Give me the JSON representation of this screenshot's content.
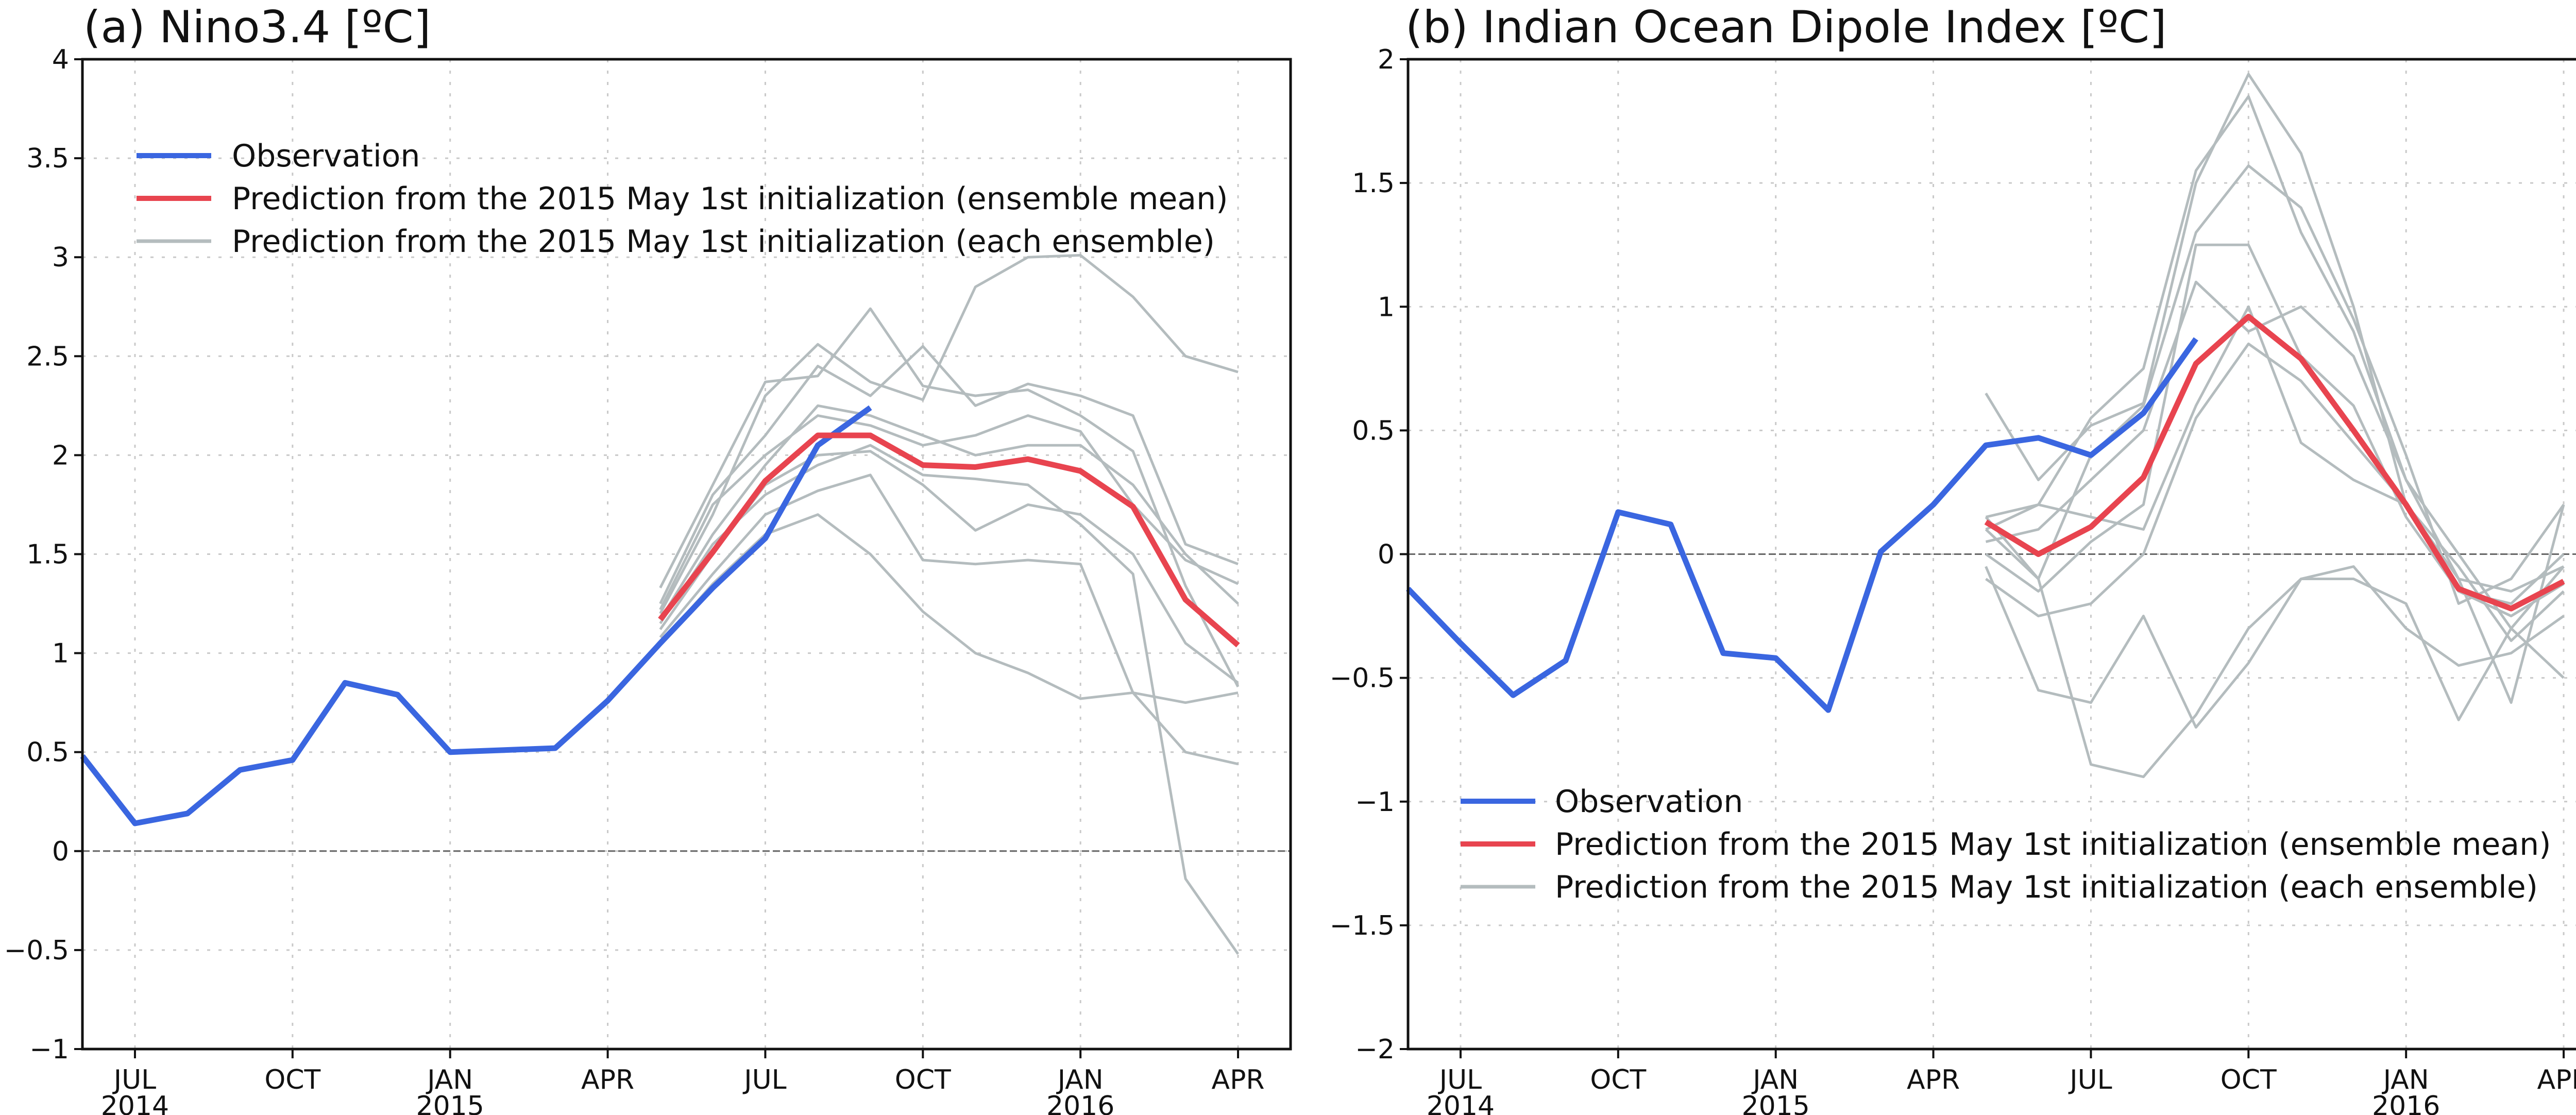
{
  "chart_data": [
    {
      "type": "line",
      "title": "(a) Nino3.4 [ºC]",
      "xlabel": "",
      "ylabel": "",
      "ylim": [
        -1,
        4
      ],
      "yticks": [
        -1,
        -0.5,
        0,
        0.5,
        1,
        1.5,
        2,
        2.5,
        3,
        3.5,
        4
      ],
      "ytick_labels": [
        "−1",
        "−0.5",
        "0",
        "0.5",
        "1",
        "1.5",
        "2",
        "2.5",
        "3",
        "3.5",
        "4"
      ],
      "x_range": [
        "2014-06",
        "2016-05"
      ],
      "xticks": [
        {
          "month": "2014-07",
          "label": "JUL",
          "year": "2014"
        },
        {
          "month": "2014-10",
          "label": "OCT",
          "year": ""
        },
        {
          "month": "2015-01",
          "label": "JAN",
          "year": "2015"
        },
        {
          "month": "2015-04",
          "label": "APR",
          "year": ""
        },
        {
          "month": "2015-07",
          "label": "JUL",
          "year": ""
        },
        {
          "month": "2015-10",
          "label": "OCT",
          "year": ""
        },
        {
          "month": "2016-01",
          "label": "JAN",
          "year": "2016"
        },
        {
          "month": "2016-04",
          "label": "APR",
          "year": ""
        }
      ],
      "grid": true,
      "zero_line": true,
      "legend_position": "top-left",
      "legend": [
        {
          "label": "Observation",
          "color": "#3a66e0"
        },
        {
          "label": "Prediction from the 2015 May 1st initialization (ensemble mean)",
          "color": "#e8444f"
        },
        {
          "label": "Prediction from the 2015 May 1st initialization (each ensemble)",
          "color": "#b4bcbe"
        }
      ],
      "series": [
        {
          "name": "Observation",
          "color": "#3a66e0",
          "x": [
            "2014-06",
            "2014-07",
            "2014-08",
            "2014-09",
            "2014-10",
            "2014-11",
            "2014-12",
            "2015-01",
            "2015-02",
            "2015-03",
            "2015-04",
            "2015-05",
            "2015-06",
            "2015-07",
            "2015-08",
            "2015-09"
          ],
          "values": [
            0.48,
            0.14,
            0.19,
            0.41,
            0.46,
            0.85,
            0.79,
            0.5,
            0.51,
            0.52,
            0.76,
            1.05,
            1.33,
            1.58,
            2.05,
            2.24
          ]
        },
        {
          "name": "Prediction from the 2015 May 1st initialization (ensemble mean)",
          "color": "#e8444f",
          "x": [
            "2015-05",
            "2015-06",
            "2015-07",
            "2015-08",
            "2015-09",
            "2015-10",
            "2015-11",
            "2015-12",
            "2016-01",
            "2016-02",
            "2016-03",
            "2016-04"
          ],
          "values": [
            1.17,
            1.51,
            1.87,
            2.1,
            2.1,
            1.95,
            1.94,
            1.98,
            1.92,
            1.74,
            1.27,
            1.04
          ]
        }
      ],
      "ensembles": {
        "color": "#b4bcbe",
        "x": [
          "2015-05",
          "2015-06",
          "2015-07",
          "2015-08",
          "2015-09",
          "2015-10",
          "2015-11",
          "2015-12",
          "2016-01",
          "2016-02",
          "2016-03",
          "2016-04"
        ],
        "members": [
          [
            1.33,
            1.85,
            2.37,
            2.4,
            2.74,
            2.35,
            2.3,
            2.33,
            2.2,
            2.02,
            1.34,
            0.83
          ],
          [
            1.2,
            1.7,
            2.3,
            2.56,
            2.37,
            2.28,
            2.85,
            3.0,
            3.01,
            2.8,
            2.5,
            2.42
          ],
          [
            1.25,
            1.8,
            2.1,
            2.45,
            2.3,
            2.55,
            2.25,
            2.36,
            2.3,
            2.2,
            1.55,
            1.45
          ],
          [
            1.17,
            1.6,
            1.95,
            2.25,
            2.2,
            2.1,
            2.0,
            2.05,
            2.05,
            1.85,
            1.5,
            1.25
          ],
          [
            1.12,
            1.5,
            1.85,
            2.0,
            2.02,
            1.85,
            1.62,
            1.75,
            1.7,
            1.5,
            1.05,
            0.85
          ],
          [
            1.08,
            1.4,
            1.7,
            1.82,
            1.9,
            1.47,
            1.45,
            1.47,
            1.45,
            0.8,
            0.5,
            0.44
          ],
          [
            1.05,
            1.35,
            1.6,
            1.7,
            1.5,
            1.21,
            1.0,
            0.9,
            0.77,
            0.8,
            0.75,
            0.8
          ],
          [
            1.15,
            1.55,
            1.8,
            1.95,
            2.05,
            1.9,
            1.88,
            1.85,
            1.65,
            1.4,
            -0.14,
            -0.52
          ],
          [
            1.22,
            1.75,
            2.0,
            2.2,
            2.15,
            2.05,
            2.1,
            2.2,
            2.12,
            1.75,
            1.47,
            1.35
          ]
        ]
      }
    },
    {
      "type": "line",
      "title": "(b) Indian Ocean Dipole Index [ºC]",
      "xlabel": "",
      "ylabel": "",
      "ylim": [
        -2,
        2
      ],
      "yticks": [
        -2,
        -1.5,
        -1,
        -0.5,
        0,
        0.5,
        1,
        1.5,
        2
      ],
      "ytick_labels": [
        "−2",
        "−1.5",
        "−1",
        "−0.5",
        "0",
        "0.5",
        "1",
        "1.5",
        "2"
      ],
      "x_range": [
        "2014-06",
        "2016-05"
      ],
      "xticks": [
        {
          "month": "2014-07",
          "label": "JUL",
          "year": "2014"
        },
        {
          "month": "2014-10",
          "label": "OCT",
          "year": ""
        },
        {
          "month": "2015-01",
          "label": "JAN",
          "year": "2015"
        },
        {
          "month": "2015-04",
          "label": "APR",
          "year": ""
        },
        {
          "month": "2015-07",
          "label": "JUL",
          "year": ""
        },
        {
          "month": "2015-10",
          "label": "OCT",
          "year": ""
        },
        {
          "month": "2016-01",
          "label": "JAN",
          "year": "2016"
        },
        {
          "month": "2016-04",
          "label": "APR",
          "year": ""
        }
      ],
      "grid": true,
      "zero_line": true,
      "legend_position": "bottom-left",
      "legend": [
        {
          "label": "Observation",
          "color": "#3a66e0"
        },
        {
          "label": "Prediction from the 2015 May 1st initialization (ensemble mean)",
          "color": "#e8444f"
        },
        {
          "label": "Prediction from the 2015 May 1st initialization (each ensemble)",
          "color": "#b4bcbe"
        }
      ],
      "series": [
        {
          "name": "Observation",
          "color": "#3a66e0",
          "x": [
            "2014-06",
            "2014-07",
            "2014-08",
            "2014-09",
            "2014-10",
            "2014-11",
            "2014-12",
            "2015-01",
            "2015-02",
            "2015-03",
            "2015-04",
            "2015-05",
            "2015-06",
            "2015-07",
            "2015-08",
            "2015-09"
          ],
          "values": [
            -0.14,
            -0.36,
            -0.57,
            -0.43,
            0.17,
            0.12,
            -0.4,
            -0.42,
            -0.63,
            0.01,
            0.2,
            0.44,
            0.47,
            0.4,
            0.57,
            0.87
          ]
        },
        {
          "name": "Prediction from the 2015 May 1st initialization (ensemble mean)",
          "color": "#e8444f",
          "x": [
            "2015-05",
            "2015-06",
            "2015-07",
            "2015-08",
            "2015-09",
            "2015-10",
            "2015-11",
            "2015-12",
            "2016-01",
            "2016-02",
            "2016-03",
            "2016-04"
          ],
          "values": [
            0.13,
            0.0,
            0.11,
            0.31,
            0.77,
            0.96,
            0.79,
            0.5,
            0.2,
            -0.14,
            -0.22,
            -0.11
          ]
        }
      ],
      "ensembles": {
        "color": "#b4bcbe",
        "x": [
          "2015-05",
          "2015-06",
          "2015-07",
          "2015-08",
          "2015-09",
          "2015-10",
          "2015-11",
          "2015-12",
          "2016-01",
          "2016-02",
          "2016-03",
          "2016-04"
        ],
        "members": [
          [
            0.65,
            0.3,
            0.52,
            0.61,
            1.5,
            1.94,
            1.62,
            1.0,
            0.2,
            -0.15,
            -0.25,
            -0.12
          ],
          [
            0.15,
            0.2,
            0.55,
            0.75,
            1.55,
            1.85,
            1.3,
            0.9,
            0.3,
            -0.1,
            -0.6,
            0.2
          ],
          [
            0.1,
            -0.1,
            0.4,
            0.6,
            1.3,
            1.57,
            1.4,
            0.95,
            0.4,
            -0.2,
            -0.1,
            0.2
          ],
          [
            0.05,
            0.1,
            0.3,
            0.5,
            1.1,
            0.9,
            1.0,
            0.8,
            0.3,
            0.0,
            -0.3,
            -0.05
          ],
          [
            -0.1,
            -0.25,
            -0.2,
            0.0,
            0.55,
            0.85,
            0.7,
            0.45,
            0.2,
            -0.05,
            -0.35,
            -0.15
          ],
          [
            0.0,
            -0.15,
            0.05,
            0.2,
            1.25,
            1.25,
            0.8,
            0.6,
            0.15,
            -0.15,
            -0.2,
            0.0
          ],
          [
            0.15,
            -0.1,
            -0.85,
            -0.9,
            -0.65,
            -0.3,
            -0.1,
            -0.1,
            -0.2,
            -0.67,
            -0.3,
            -0.5
          ],
          [
            -0.05,
            -0.55,
            -0.6,
            -0.25,
            -0.7,
            -0.44,
            -0.1,
            -0.05,
            -0.3,
            -0.45,
            -0.4,
            -0.25
          ],
          [
            0.1,
            0.2,
            0.15,
            0.1,
            0.6,
            1.0,
            0.45,
            0.3,
            0.2,
            -0.1,
            -0.15,
            -0.05
          ]
        ]
      }
    }
  ]
}
